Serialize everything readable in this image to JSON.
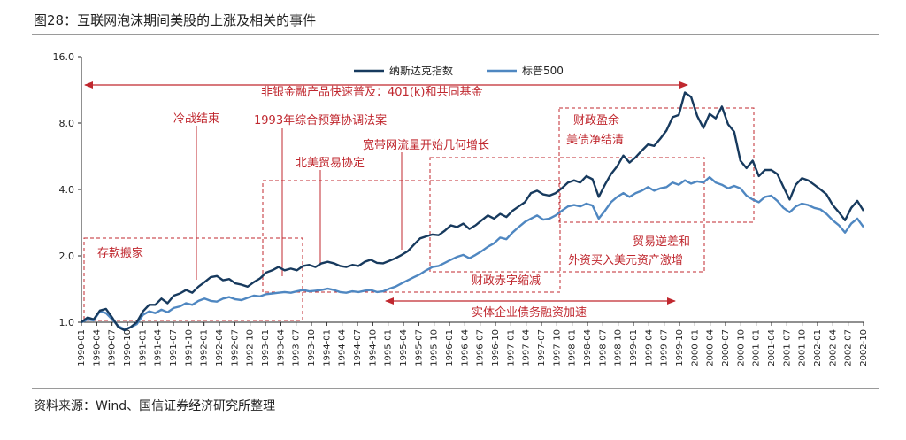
{
  "title": "图28：互联网泡沫期间美股的上涨及相关的事件",
  "source": "资料来源：Wind、国信证券经济研究所整理",
  "colors": {
    "nasdaq": "#173a5e",
    "sp500": "#4f87c1",
    "annotation": "#c0282f",
    "axis": "#222222"
  },
  "chart_data": {
    "type": "line",
    "y_scale": "log2",
    "ylim": [
      1.0,
      16.0
    ],
    "yticks": [
      "1.0",
      "2.0",
      "4.0",
      "8.0",
      "16.0"
    ],
    "legend_position": "top-center",
    "x_labels": [
      "1990-01",
      "1990-04",
      "1990-07",
      "1990-10",
      "1991-01",
      "1991-04",
      "1991-07",
      "1991-10",
      "1992-01",
      "1992-04",
      "1992-07",
      "1992-10",
      "1993-01",
      "1993-04",
      "1993-07",
      "1993-10",
      "1994-01",
      "1994-04",
      "1994-07",
      "1994-10",
      "1995-01",
      "1995-04",
      "1995-07",
      "1995-10",
      "1996-01",
      "1996-04",
      "1996-07",
      "1996-10",
      "1997-01",
      "1997-04",
      "1997-07",
      "1997-10",
      "1998-01",
      "1998-04",
      "1998-07",
      "1998-10",
      "1999-01",
      "1999-04",
      "1999-07",
      "1999-10",
      "2000-01",
      "2000-04",
      "2000-07",
      "2000-10",
      "2001-01",
      "2001-04",
      "2001-07",
      "2001-10",
      "2002-01",
      "2002-04",
      "2002-07",
      "2002-10"
    ],
    "series": [
      {
        "name": "纳斯达克指数",
        "points": [
          [
            0,
            1.0
          ],
          [
            1,
            1.05
          ],
          [
            2,
            1.03
          ],
          [
            3,
            1.13
          ],
          [
            4,
            1.15
          ],
          [
            5,
            1.05
          ],
          [
            6,
            0.95
          ],
          [
            7,
            0.92
          ],
          [
            8,
            0.95
          ],
          [
            9,
            1.0
          ],
          [
            10,
            1.12
          ],
          [
            11,
            1.2
          ],
          [
            12,
            1.2
          ],
          [
            13,
            1.28
          ],
          [
            14,
            1.22
          ],
          [
            15,
            1.32
          ],
          [
            16,
            1.35
          ],
          [
            17,
            1.4
          ],
          [
            18,
            1.36
          ],
          [
            19,
            1.45
          ],
          [
            20,
            1.52
          ],
          [
            21,
            1.6
          ],
          [
            22,
            1.62
          ],
          [
            23,
            1.55
          ],
          [
            24,
            1.57
          ],
          [
            25,
            1.5
          ],
          [
            26,
            1.48
          ],
          [
            27,
            1.45
          ],
          [
            28,
            1.52
          ],
          [
            29,
            1.58
          ],
          [
            30,
            1.68
          ],
          [
            31,
            1.72
          ],
          [
            32,
            1.78
          ],
          [
            33,
            1.72
          ],
          [
            34,
            1.75
          ],
          [
            35,
            1.72
          ],
          [
            36,
            1.8
          ],
          [
            37,
            1.82
          ],
          [
            38,
            1.78
          ],
          [
            39,
            1.85
          ],
          [
            40,
            1.88
          ],
          [
            41,
            1.85
          ],
          [
            42,
            1.8
          ],
          [
            43,
            1.78
          ],
          [
            44,
            1.82
          ],
          [
            45,
            1.8
          ],
          [
            46,
            1.88
          ],
          [
            47,
            1.92
          ],
          [
            48,
            1.86
          ],
          [
            49,
            1.85
          ],
          [
            50,
            1.9
          ],
          [
            51,
            1.95
          ],
          [
            52,
            2.02
          ],
          [
            53,
            2.1
          ],
          [
            54,
            2.25
          ],
          [
            55,
            2.4
          ],
          [
            56,
            2.45
          ],
          [
            57,
            2.5
          ],
          [
            58,
            2.48
          ],
          [
            59,
            2.6
          ],
          [
            60,
            2.75
          ],
          [
            61,
            2.7
          ],
          [
            62,
            2.8
          ],
          [
            63,
            2.65
          ],
          [
            64,
            2.75
          ],
          [
            65,
            2.9
          ],
          [
            66,
            3.05
          ],
          [
            67,
            2.95
          ],
          [
            68,
            3.1
          ],
          [
            69,
            3.0
          ],
          [
            70,
            3.2
          ],
          [
            71,
            3.35
          ],
          [
            72,
            3.5
          ],
          [
            73,
            3.85
          ],
          [
            74,
            3.95
          ],
          [
            75,
            3.8
          ],
          [
            76,
            3.75
          ],
          [
            77,
            3.85
          ],
          [
            78,
            4.05
          ],
          [
            79,
            4.3
          ],
          [
            80,
            4.4
          ],
          [
            81,
            4.3
          ],
          [
            82,
            4.6
          ],
          [
            83,
            4.45
          ],
          [
            84,
            3.7
          ],
          [
            85,
            4.2
          ],
          [
            86,
            4.7
          ],
          [
            87,
            5.1
          ],
          [
            88,
            5.7
          ],
          [
            89,
            5.3
          ],
          [
            90,
            5.6
          ],
          [
            91,
            6.0
          ],
          [
            92,
            6.4
          ],
          [
            93,
            6.3
          ],
          [
            94,
            6.8
          ],
          [
            95,
            7.4
          ],
          [
            96,
            8.5
          ],
          [
            97,
            8.7
          ],
          [
            98,
            11.0
          ],
          [
            99,
            10.5
          ],
          [
            100,
            8.6
          ],
          [
            101,
            7.6
          ],
          [
            102,
            8.8
          ],
          [
            103,
            8.4
          ],
          [
            104,
            9.5
          ],
          [
            105,
            7.9
          ],
          [
            106,
            7.3
          ],
          [
            107,
            5.4
          ],
          [
            108,
            5.0
          ],
          [
            109,
            5.4
          ],
          [
            110,
            4.6
          ],
          [
            111,
            4.9
          ],
          [
            112,
            4.9
          ],
          [
            113,
            4.7
          ],
          [
            114,
            4.1
          ],
          [
            115,
            3.6
          ],
          [
            116,
            4.2
          ],
          [
            117,
            4.5
          ],
          [
            118,
            4.4
          ],
          [
            119,
            4.2
          ],
          [
            120,
            4.0
          ],
          [
            121,
            3.8
          ],
          [
            122,
            3.4
          ],
          [
            123,
            3.15
          ],
          [
            124,
            2.9
          ],
          [
            125,
            3.3
          ],
          [
            126,
            3.55
          ],
          [
            127,
            3.2
          ]
        ]
      },
      {
        "name": "标普500",
        "points": [
          [
            0,
            1.0
          ],
          [
            1,
            1.03
          ],
          [
            2,
            1.02
          ],
          [
            3,
            1.12
          ],
          [
            4,
            1.1
          ],
          [
            5,
            1.03
          ],
          [
            6,
            0.96
          ],
          [
            7,
            0.93
          ],
          [
            8,
            0.95
          ],
          [
            9,
            0.98
          ],
          [
            10,
            1.08
          ],
          [
            11,
            1.12
          ],
          [
            12,
            1.1
          ],
          [
            13,
            1.14
          ],
          [
            14,
            1.11
          ],
          [
            15,
            1.16
          ],
          [
            16,
            1.18
          ],
          [
            17,
            1.22
          ],
          [
            18,
            1.2
          ],
          [
            19,
            1.25
          ],
          [
            20,
            1.28
          ],
          [
            21,
            1.25
          ],
          [
            22,
            1.24
          ],
          [
            23,
            1.28
          ],
          [
            24,
            1.3
          ],
          [
            25,
            1.27
          ],
          [
            26,
            1.26
          ],
          [
            27,
            1.29
          ],
          [
            28,
            1.32
          ],
          [
            29,
            1.31
          ],
          [
            30,
            1.34
          ],
          [
            31,
            1.35
          ],
          [
            32,
            1.36
          ],
          [
            33,
            1.37
          ],
          [
            34,
            1.36
          ],
          [
            35,
            1.38
          ],
          [
            36,
            1.4
          ],
          [
            37,
            1.38
          ],
          [
            38,
            1.39
          ],
          [
            39,
            1.4
          ],
          [
            40,
            1.42
          ],
          [
            41,
            1.4
          ],
          [
            42,
            1.37
          ],
          [
            43,
            1.36
          ],
          [
            44,
            1.38
          ],
          [
            45,
            1.37
          ],
          [
            46,
            1.39
          ],
          [
            47,
            1.4
          ],
          [
            48,
            1.37
          ],
          [
            49,
            1.38
          ],
          [
            50,
            1.42
          ],
          [
            51,
            1.45
          ],
          [
            52,
            1.5
          ],
          [
            53,
            1.55
          ],
          [
            54,
            1.6
          ],
          [
            55,
            1.65
          ],
          [
            56,
            1.72
          ],
          [
            57,
            1.78
          ],
          [
            58,
            1.8
          ],
          [
            59,
            1.86
          ],
          [
            60,
            1.92
          ],
          [
            61,
            1.98
          ],
          [
            62,
            2.02
          ],
          [
            63,
            1.95
          ],
          [
            64,
            2.02
          ],
          [
            65,
            2.1
          ],
          [
            66,
            2.2
          ],
          [
            67,
            2.28
          ],
          [
            68,
            2.42
          ],
          [
            69,
            2.38
          ],
          [
            70,
            2.55
          ],
          [
            71,
            2.7
          ],
          [
            72,
            2.85
          ],
          [
            73,
            2.95
          ],
          [
            74,
            3.05
          ],
          [
            75,
            2.92
          ],
          [
            76,
            2.95
          ],
          [
            77,
            3.05
          ],
          [
            78,
            3.2
          ],
          [
            79,
            3.35
          ],
          [
            80,
            3.4
          ],
          [
            81,
            3.35
          ],
          [
            82,
            3.45
          ],
          [
            83,
            3.38
          ],
          [
            84,
            2.95
          ],
          [
            85,
            3.2
          ],
          [
            86,
            3.5
          ],
          [
            87,
            3.7
          ],
          [
            88,
            3.85
          ],
          [
            89,
            3.7
          ],
          [
            90,
            3.85
          ],
          [
            91,
            3.95
          ],
          [
            92,
            4.1
          ],
          [
            93,
            3.95
          ],
          [
            94,
            4.05
          ],
          [
            95,
            4.1
          ],
          [
            96,
            4.3
          ],
          [
            97,
            4.2
          ],
          [
            98,
            4.4
          ],
          [
            99,
            4.25
          ],
          [
            100,
            4.35
          ],
          [
            101,
            4.3
          ],
          [
            102,
            4.55
          ],
          [
            103,
            4.3
          ],
          [
            104,
            4.2
          ],
          [
            105,
            4.05
          ],
          [
            106,
            4.15
          ],
          [
            107,
            4.05
          ],
          [
            108,
            3.75
          ],
          [
            109,
            3.6
          ],
          [
            110,
            3.5
          ],
          [
            111,
            3.7
          ],
          [
            112,
            3.75
          ],
          [
            113,
            3.55
          ],
          [
            114,
            3.3
          ],
          [
            115,
            3.15
          ],
          [
            116,
            3.35
          ],
          [
            117,
            3.45
          ],
          [
            118,
            3.4
          ],
          [
            119,
            3.3
          ],
          [
            120,
            3.25
          ],
          [
            121,
            3.1
          ],
          [
            122,
            2.9
          ],
          [
            123,
            2.75
          ],
          [
            124,
            2.55
          ],
          [
            125,
            2.8
          ],
          [
            126,
            2.95
          ],
          [
            127,
            2.7
          ]
        ]
      }
    ],
    "annotations": [
      "非银金融产品快速普及：401(k)和共同基金",
      "冷战结束",
      "1993年综合预算协调法案",
      "北美贸易协定",
      "宽带网流量开始几何增长",
      "财政盈余",
      "美债净结清",
      "存款搬家",
      "贸易逆差和",
      "外资买入美元资产激增",
      "财政赤字缩减",
      "实体企业债务融资加速"
    ]
  }
}
